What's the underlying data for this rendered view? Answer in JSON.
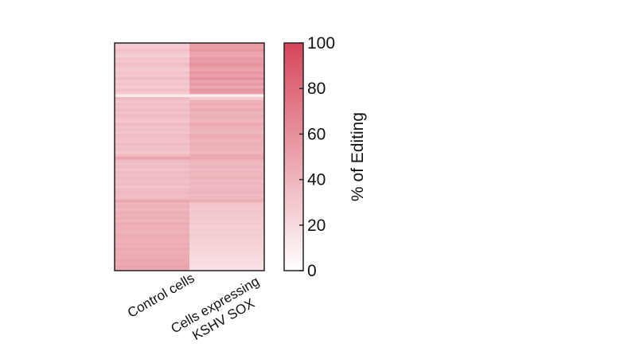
{
  "chart_data": {
    "type": "heatmap",
    "title": "",
    "columns": [
      "Control cells",
      "Cells expressing KSHV SOX"
    ],
    "column_label_lines": [
      [
        "Control cells"
      ],
      [
        "Cells expressing",
        "KSHV SOX"
      ]
    ],
    "colorbar": {
      "label": "% of Editing",
      "range": [
        0,
        100
      ],
      "ticks": [
        0,
        20,
        40,
        60,
        80,
        100
      ],
      "color_low": "#ffffff",
      "color_high": "#d6465a"
    },
    "rows": [
      [
        30,
        55
      ],
      [
        28,
        52
      ],
      [
        34,
        58
      ],
      [
        30,
        50
      ],
      [
        26,
        48
      ],
      [
        32,
        56
      ],
      [
        29,
        53
      ],
      [
        35,
        60
      ],
      [
        31,
        54
      ],
      [
        27,
        49
      ],
      [
        33,
        57
      ],
      [
        30,
        52
      ],
      [
        36,
        61
      ],
      [
        29,
        50
      ],
      [
        32,
        55
      ],
      [
        28,
        47
      ],
      [
        34,
        58
      ],
      [
        30,
        53
      ],
      [
        12,
        10
      ],
      [
        38,
        30
      ],
      [
        31,
        42
      ],
      [
        35,
        45
      ],
      [
        33,
        41
      ],
      [
        37,
        46
      ],
      [
        32,
        40
      ],
      [
        36,
        44
      ],
      [
        34,
        43
      ],
      [
        30,
        39
      ],
      [
        38,
        47
      ],
      [
        33,
        42
      ],
      [
        35,
        41
      ],
      [
        31,
        38
      ],
      [
        37,
        45
      ],
      [
        34,
        43
      ],
      [
        32,
        40
      ],
      [
        36,
        44
      ],
      [
        33,
        41
      ],
      [
        35,
        42
      ],
      [
        31,
        39
      ],
      [
        38,
        46
      ],
      [
        50,
        48
      ],
      [
        36,
        40
      ],
      [
        34,
        38
      ],
      [
        37,
        41
      ],
      [
        33,
        37
      ],
      [
        36,
        39
      ],
      [
        35,
        38
      ],
      [
        38,
        42
      ],
      [
        34,
        37
      ],
      [
        37,
        40
      ],
      [
        33,
        36
      ],
      [
        36,
        39
      ],
      [
        39,
        41
      ],
      [
        35,
        37
      ],
      [
        37,
        39
      ],
      [
        48,
        44
      ],
      [
        40,
        32
      ],
      [
        42,
        30
      ],
      [
        39,
        29
      ],
      [
        43,
        31
      ],
      [
        41,
        28
      ],
      [
        44,
        30
      ],
      [
        40,
        27
      ],
      [
        45,
        29
      ],
      [
        42,
        26
      ],
      [
        43,
        28
      ],
      [
        41,
        25
      ],
      [
        46,
        27
      ],
      [
        44,
        26
      ],
      [
        42,
        24
      ],
      [
        45,
        25
      ],
      [
        43,
        23
      ],
      [
        47,
        24
      ],
      [
        44,
        22
      ],
      [
        46,
        21
      ],
      [
        45,
        20
      ],
      [
        48,
        19
      ],
      [
        46,
        18
      ],
      [
        49,
        17
      ],
      [
        47,
        16
      ]
    ]
  }
}
